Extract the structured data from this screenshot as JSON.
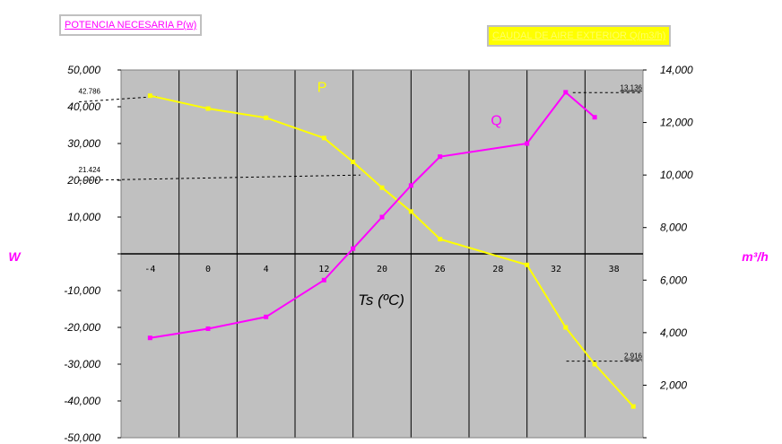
{
  "chart_data": {
    "type": "line",
    "legend": {
      "left": "POTENCIA NECESARIA P(w)",
      "right": "CAUDAL DE AIRE EXTERIOR Q(m3/h)"
    },
    "categories": [
      "-4",
      "0",
      "4",
      "12",
      "20",
      "26",
      "28",
      "32",
      "38"
    ],
    "xlabel": "Ts (ºC)",
    "ylabel_left": "W",
    "ylabel_right": "m³/h",
    "ylim_left": [
      -50000,
      50000
    ],
    "ylim_right": [
      0,
      14000
    ],
    "yticks_left": [
      "50,000",
      "40,000",
      "30,000",
      "20,000",
      "10,000",
      "",
      "-10,000",
      "-20,000",
      "-30,000",
      "-40,000",
      "-50,000"
    ],
    "yticks_right": [
      "14,000",
      "12,000",
      "10,000",
      "8,000",
      "6,000",
      "4,000",
      "2,000",
      ""
    ],
    "series": [
      {
        "name": "P",
        "axis": "left",
        "color": "#ffff00",
        "x": [
          -4,
          0,
          4,
          12,
          16,
          20,
          23,
          26,
          30,
          33,
          36,
          40
        ],
        "values": [
          43000,
          39500,
          37000,
          31500,
          25000,
          18000,
          11500,
          4000,
          -3000,
          -20000,
          -30000,
          -41500
        ]
      },
      {
        "name": "Q",
        "axis": "right",
        "color": "#ff00ff",
        "x": [
          -4,
          0,
          4,
          12,
          16,
          20,
          23,
          26,
          30,
          33,
          36
        ],
        "values": [
          3800,
          4150,
          4600,
          6000,
          7200,
          8400,
          9600,
          10700,
          11200,
          13150,
          12200
        ]
      }
    ],
    "annotations": [
      {
        "label": "42.786",
        "value": 42786,
        "axis": "left"
      },
      {
        "label": "21.424",
        "value": 21424,
        "axis": "left"
      },
      {
        "label": "13.136",
        "value": 13136,
        "axis": "right"
      },
      {
        "label": "2.916",
        "value": 2916,
        "axis": "right"
      }
    ],
    "grid": true
  }
}
